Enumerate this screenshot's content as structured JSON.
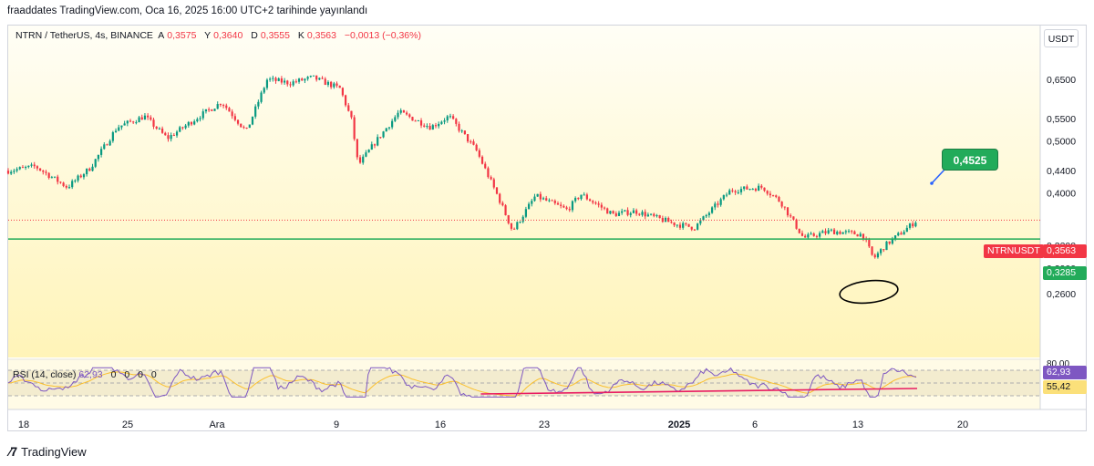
{
  "header": {
    "published_text": "fraaddates TradingView.com, Oca 16, 2025 16:00 UTC+2 tarihinde yayınlandı"
  },
  "symbol": {
    "name": "NTRN / TetherUS, 4s, BINANCE",
    "open_label": "A",
    "open": "0,3575",
    "high_label": "Y",
    "high": "0,3640",
    "low_label": "D",
    "low": "0,3555",
    "close_label": "K",
    "close": "0,3563",
    "change": "−0,0013 (−0,36%)"
  },
  "currency_button": "USDT",
  "footer": {
    "brand": "TradingView",
    "logo_icon": "tradingview-logo-icon"
  },
  "colors": {
    "up": "#089981",
    "down": "#f23645",
    "support": "#22ab5a",
    "rsi": "#7e57c2",
    "rsi_ma": "#fbc02d",
    "rsi_trend": "#e91e63",
    "bg_top": "#fffdf0",
    "bg_bottom": "#fff6c0"
  },
  "chart_data": {
    "type": "candlestick",
    "symbol": "NTRNUSDT",
    "y_axis": {
      "scale": "log",
      "ticks": [
        "0,6500",
        "0,5500",
        "0,5000",
        "0,4400",
        "0,4000",
        "0,3200",
        "0,2900",
        "0,2600"
      ]
    },
    "x_axis": {
      "ticks": [
        "18",
        "25",
        "Ara",
        "9",
        "16",
        "23",
        "2025",
        "6",
        "13",
        "20"
      ]
    },
    "path_keypoints": [
      [
        0,
        0.44
      ],
      [
        30,
        0.448
      ],
      [
        65,
        0.41
      ],
      [
        90,
        0.445
      ],
      [
        120,
        0.53
      ],
      [
        150,
        0.555
      ],
      [
        175,
        0.505
      ],
      [
        210,
        0.555
      ],
      [
        235,
        0.59
      ],
      [
        262,
        0.52
      ],
      [
        285,
        0.65
      ],
      [
        310,
        0.64
      ],
      [
        335,
        0.655
      ],
      [
        365,
        0.625
      ],
      [
        378,
        0.545
      ],
      [
        385,
        0.45
      ],
      [
        405,
        0.5
      ],
      [
        430,
        0.565
      ],
      [
        465,
        0.53
      ],
      [
        485,
        0.555
      ],
      [
        515,
        0.48
      ],
      [
        540,
        0.39
      ],
      [
        555,
        0.34
      ],
      [
        580,
        0.395
      ],
      [
        615,
        0.372
      ],
      [
        630,
        0.398
      ],
      [
        665,
        0.365
      ],
      [
        690,
        0.37
      ],
      [
        735,
        0.35
      ],
      [
        755,
        0.345
      ],
      [
        795,
        0.405
      ],
      [
        830,
        0.41
      ],
      [
        850,
        0.385
      ],
      [
        875,
        0.33
      ],
      [
        905,
        0.34
      ],
      [
        940,
        0.335
      ],
      [
        952,
        0.302
      ],
      [
        965,
        0.32
      ],
      [
        985,
        0.34
      ],
      [
        1000,
        0.3563
      ]
    ],
    "current_price": {
      "label": "NTRNUSDT",
      "value": "0,3563"
    },
    "support_level": {
      "value": "0,3285"
    },
    "target_annotation": {
      "value": "0,4525"
    },
    "rsi": {
      "label": "RSI (14, close)",
      "value": "62,93",
      "ma_value": "55,42",
      "axis_ticks": [
        "80,00"
      ],
      "zero_values": [
        "0",
        "0",
        "0",
        "0"
      ]
    }
  }
}
